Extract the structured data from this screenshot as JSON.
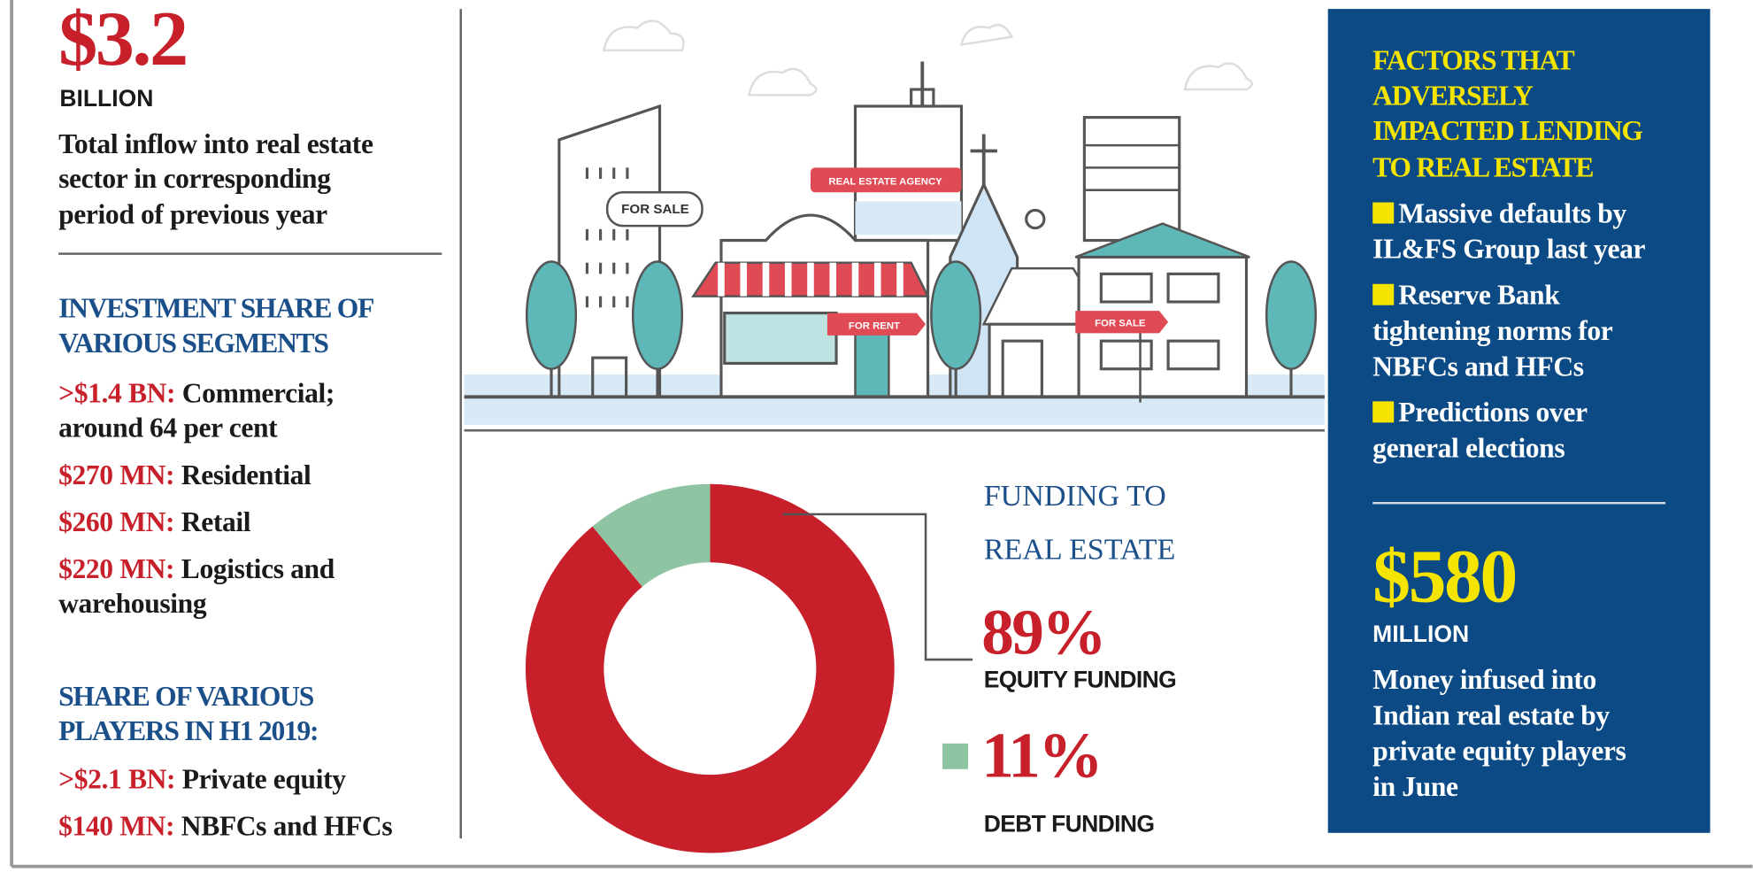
{
  "left_panel": {
    "headline_value": "$3.2",
    "headline_unit": "BILLION",
    "headline_text": [
      "Total inflow into real estate",
      "sector in corresponding",
      "period of previous year"
    ],
    "segments": {
      "heading": [
        "INVESTMENT SHARE OF",
        "VARIOUS SEGMENTS"
      ],
      "items": [
        {
          "amount": ">$1.4 BN:",
          "lines": [
            "Commercial;",
            "around 64 per cent"
          ]
        },
        {
          "amount": "$270 MN:",
          "lines": [
            "Residential"
          ]
        },
        {
          "amount": "$260 MN:",
          "lines": [
            "Retail"
          ]
        },
        {
          "amount": "$220 MN:",
          "lines": [
            "Logistics and",
            "warehousing"
          ]
        }
      ]
    },
    "players": {
      "heading": [
        "SHARE OF VARIOUS",
        "PLAYERS IN H1 2019:"
      ],
      "items": [
        {
          "amount": ">$2.1 BN:",
          "lines": [
            "Private equity"
          ]
        },
        {
          "amount": "$140 MN:",
          "lines": [
            "NBFCs and HFCs"
          ]
        }
      ]
    }
  },
  "illustration": {
    "signs": [
      "FOR SALE",
      "REAL ESTATE AGENCY",
      "FOR RENT",
      "FOR SALE"
    ]
  },
  "chart_data": {
    "type": "pie",
    "donut": true,
    "title": [
      "FUNDING TO",
      "REAL ESTATE"
    ],
    "categories": [
      "EQUITY FUNDING",
      "DEBT FUNDING"
    ],
    "values": [
      89,
      11
    ],
    "value_labels": [
      "89%",
      "11%"
    ],
    "colors": [
      "#c8202a",
      "#8fc4a3"
    ]
  },
  "right_panel": {
    "title": [
      "FACTORS THAT",
      "ADVERSELY",
      "IMPACTED LENDING",
      "TO REAL ESTATE"
    ],
    "items": [
      {
        "lines": [
          "Massive defaults by",
          "IL&FS Group last year"
        ]
      },
      {
        "lines": [
          "Reserve Bank",
          "tightening norms for",
          "NBFCs and HFCs"
        ]
      },
      {
        "lines": [
          "Predictions over",
          "general elections"
        ]
      }
    ],
    "headline_value": "$580",
    "headline_unit": "MILLION",
    "headline_text": [
      "Money infused into",
      "Indian real estate by",
      "private equity players",
      "in June"
    ]
  }
}
